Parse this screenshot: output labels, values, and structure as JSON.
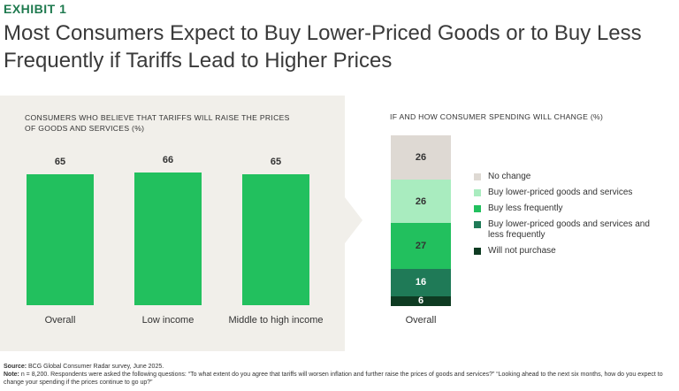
{
  "exhibit": "EXHIBIT 1",
  "title": "Most Consumers Expect to Buy Lower-Priced Goods or to Buy Less Frequently if Tariffs Lead to Higher Prices",
  "colors": {
    "accent": "#1f7a4f",
    "panel": "#f1efea",
    "bar": "#22c05e"
  },
  "chart_data": [
    {
      "type": "bar",
      "title": "CONSUMERS WHO BELIEVE THAT TARIFFS WILL RAISE THE PRICES OF GOODS AND SERVICES (%)",
      "categories": [
        "Overall",
        "Low income",
        "Middle to high income"
      ],
      "values": [
        65,
        66,
        65
      ],
      "ylim": [
        0,
        70
      ],
      "grid": false
    },
    {
      "type": "bar",
      "stacked": true,
      "title": "IF AND HOW CONSUMER SPENDING WILL CHANGE (%)",
      "categories": [
        "Overall"
      ],
      "series": [
        {
          "name": "Will not purchase",
          "values": [
            6
          ],
          "color": "#0e3b22"
        },
        {
          "name": "Buy lower-priced goods and services and less frequently",
          "values": [
            16
          ],
          "color": "#1f7a57"
        },
        {
          "name": "Buy less frequently",
          "values": [
            27
          ],
          "color": "#22c05e"
        },
        {
          "name": "Buy lower-priced goods and services",
          "values": [
            26
          ],
          "color": "#a9ecbf"
        },
        {
          "name": "No change",
          "values": [
            26
          ],
          "color": "#ded9d3"
        }
      ],
      "legend": "right"
    }
  ],
  "footer": {
    "source_label": "Source:",
    "source_text": "BCG Global Consumer Radar survey, June 2025.",
    "note_label": "Note:",
    "note_text": "n = 8,200. Respondents were asked the following questions: “To what extent do you agree that tariffs will worsen inflation and further raise the prices of goods and services?” “Looking ahead to the next six months, how do you expect to change your spending if the prices continue to go up?”"
  }
}
